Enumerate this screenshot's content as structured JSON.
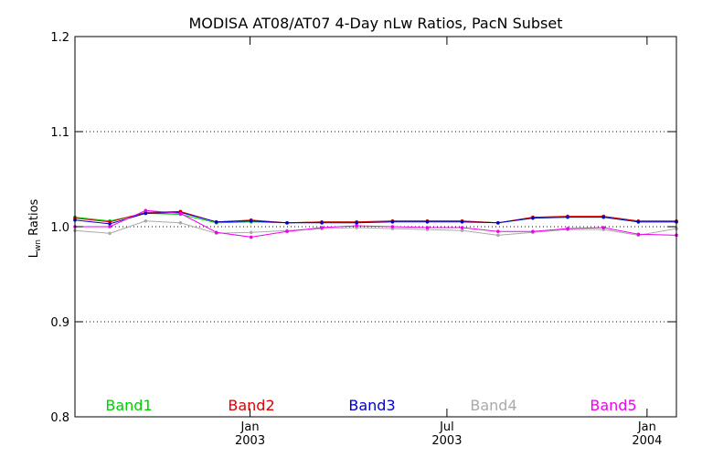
{
  "chart_data": {
    "type": "line",
    "title": "MODISA AT08/AT07 4-Day nLw Ratios, PacN Subset",
    "ylabel_main": "L",
    "ylabel_sub": "wn",
    "ylabel_rest": " Ratios",
    "ylim": [
      0.8,
      1.2
    ],
    "xlim": [
      "2002-07-24",
      "2004-01-28"
    ],
    "y_ticks": [
      "0.8",
      "0.9",
      "1.0",
      "1.1",
      "1.2"
    ],
    "x_ticks": [
      {
        "date": "2003-01-01",
        "month": "Jan",
        "year": "2003"
      },
      {
        "date": "2003-07-01",
        "month": "Jul",
        "year": "2003"
      },
      {
        "date": "2004-01-01",
        "month": "Jan",
        "year": "2004"
      }
    ],
    "grid": "dotted horizontal at 0.9, 1.0, 1.1",
    "series": [
      {
        "name": "Band1",
        "color": "#00cc00",
        "x": [
          "2002-07-24",
          "2002-08-25",
          "2002-09-27",
          "2002-10-29",
          "2002-12-01",
          "2003-01-02",
          "2003-02-04",
          "2003-03-08",
          "2003-04-09",
          "2003-05-12",
          "2003-06-13",
          "2003-07-15",
          "2003-08-17",
          "2003-09-18",
          "2003-10-20",
          "2003-11-22",
          "2003-12-24",
          "2004-01-28"
        ],
        "values": [
          1.01,
          1.006,
          1.014,
          1.013,
          1.004,
          1.005,
          1.004,
          1.005,
          1.005,
          1.006,
          1.006,
          1.006,
          1.004,
          1.009,
          1.01,
          1.01,
          1.005,
          1.005
        ]
      },
      {
        "name": "Band2",
        "color": "#dd0000",
        "x": [
          "2002-07-24",
          "2002-08-25",
          "2002-09-27",
          "2002-10-29",
          "2002-12-01",
          "2003-01-02",
          "2003-02-04",
          "2003-03-08",
          "2003-04-09",
          "2003-05-12",
          "2003-06-13",
          "2003-07-15",
          "2003-08-17",
          "2003-09-18",
          "2003-10-20",
          "2003-11-22",
          "2003-12-24",
          "2004-01-28"
        ],
        "values": [
          1.009,
          1.005,
          1.015,
          1.016,
          1.005,
          1.007,
          1.004,
          1.005,
          1.005,
          1.006,
          1.006,
          1.006,
          1.004,
          1.01,
          1.011,
          1.011,
          1.006,
          1.006
        ]
      },
      {
        "name": "Band3",
        "color": "#0000cc",
        "x": [
          "2002-07-24",
          "2002-08-25",
          "2002-09-27",
          "2002-10-29",
          "2002-12-01",
          "2003-01-02",
          "2003-02-04",
          "2003-03-08",
          "2003-04-09",
          "2003-05-12",
          "2003-06-13",
          "2003-07-15",
          "2003-08-17",
          "2003-09-18",
          "2003-10-20",
          "2003-11-22",
          "2003-12-24",
          "2004-01-28"
        ],
        "values": [
          1.007,
          1.003,
          1.014,
          1.015,
          1.005,
          1.006,
          1.004,
          1.004,
          1.004,
          1.005,
          1.005,
          1.005,
          1.004,
          1.009,
          1.01,
          1.01,
          1.005,
          1.005
        ]
      },
      {
        "name": "Band4",
        "color": "#aaaaaa",
        "x": [
          "2002-07-24",
          "2002-08-25",
          "2002-09-27",
          "2002-10-29",
          "2002-12-01",
          "2003-01-02",
          "2003-02-04",
          "2003-03-08",
          "2003-04-09",
          "2003-05-12",
          "2003-06-13",
          "2003-07-15",
          "2003-08-17",
          "2003-09-18",
          "2003-10-20",
          "2003-11-22",
          "2003-12-24",
          "2004-01-28"
        ],
        "values": [
          0.996,
          0.993,
          1.006,
          1.004,
          0.993,
          0.994,
          0.996,
          0.998,
          0.999,
          0.998,
          0.997,
          0.996,
          0.991,
          0.994,
          0.997,
          0.997,
          0.991,
          0.998
        ]
      },
      {
        "name": "Band5",
        "color": "#ee00ee",
        "x": [
          "2002-07-24",
          "2002-08-25",
          "2002-09-27",
          "2002-10-29",
          "2002-12-01",
          "2003-01-02",
          "2003-02-04",
          "2003-03-08",
          "2003-04-09",
          "2003-05-12",
          "2003-06-13",
          "2003-07-15",
          "2003-08-17",
          "2003-09-18",
          "2003-10-20",
          "2003-11-22",
          "2003-12-24",
          "2004-01-28"
        ],
        "values": [
          1.0,
          1.0,
          1.017,
          1.014,
          0.994,
          0.989,
          0.995,
          0.999,
          1.001,
          1.0,
          0.999,
          0.999,
          0.995,
          0.995,
          0.998,
          0.999,
          0.992,
          0.991
        ]
      }
    ]
  }
}
